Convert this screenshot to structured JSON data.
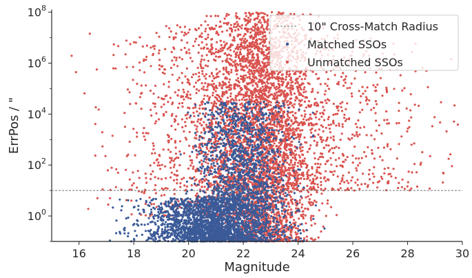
{
  "chart_data": {
    "type": "scatter",
    "xlabel": "Magnitude",
    "ylabel": "ErrPos / \"",
    "xlim": [
      15,
      30
    ],
    "ylim_log10": [
      -1,
      8.1
    ],
    "yscale": "log",
    "x_ticks": [
      16,
      18,
      20,
      22,
      24,
      26,
      28,
      30
    ],
    "y_ticks": [
      {
        "exp": 0,
        "base": "10",
        "sup": "0"
      },
      {
        "exp": 2,
        "base": "10",
        "sup": "2"
      },
      {
        "exp": 4,
        "base": "10",
        "sup": "4"
      },
      {
        "exp": 6,
        "base": "10",
        "sup": "6"
      },
      {
        "exp": 8,
        "base": "10",
        "sup": "8"
      }
    ],
    "grid": false,
    "legend_position": "upper-right",
    "threshold": {
      "name": "10\" Cross-Match Radius",
      "value": 10
    },
    "series": [
      {
        "name": "Unmatched SSOs",
        "color": "#d9534f"
      },
      {
        "name": "Matched SSOs",
        "color": "#3b5a98"
      }
    ],
    "distribution_regions": {
      "unmatched": [
        {
          "x_center": 22.7,
          "x_sd": 0.9,
          "log10_y_min": -1,
          "log10_y_max": 8,
          "share": 0.55
        },
        {
          "x_center": 21.2,
          "x_sd": 1.6,
          "log10_y_min": 0,
          "log10_y_max": 7.5,
          "share": 0.2
        },
        {
          "x_center": 23.5,
          "x_sd": 2.5,
          "log10_y_min": 1,
          "log10_y_max": 7,
          "share": 0.25
        }
      ],
      "matched": [
        {
          "x_center": 21.0,
          "x_sd": 1.2,
          "log10_y_min": -1,
          "log10_y_max": 0.7,
          "share": 0.7
        },
        {
          "x_center": 22.0,
          "x_sd": 0.8,
          "log10_y_min": 0.7,
          "log10_y_max": 4.5,
          "share": 0.3
        }
      ]
    }
  }
}
